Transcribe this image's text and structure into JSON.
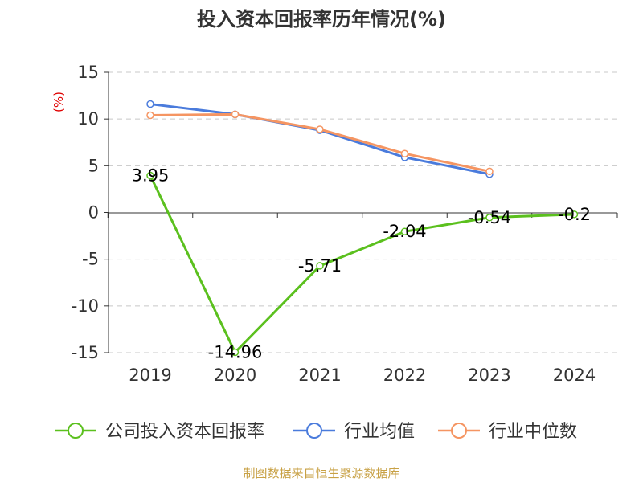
{
  "title": "投入资本回报率历年情况(%)",
  "source": "制图数据来自恒生聚源数据库",
  "chart_data": {
    "type": "line",
    "title": "投入资本回报率历年情况(%)",
    "xlabel": "",
    "ylabel": "(%)",
    "categories": [
      "2019",
      "2020",
      "2021",
      "2022",
      "2023",
      "2024"
    ],
    "ylim": [
      -15,
      15
    ],
    "yticks": [
      15,
      10,
      5,
      0,
      -5,
      -10,
      -15
    ],
    "grid": true,
    "legend_position": "bottom",
    "series": [
      {
        "name": "公司投入资本回报率",
        "color": "#5bc01e",
        "values": [
          3.95,
          -14.96,
          -5.71,
          -2.04,
          -0.54,
          -0.2
        ],
        "labels": [
          "3.95",
          "-14.96",
          "-5.71",
          "-2.04",
          "-0.54",
          "-0.2"
        ]
      },
      {
        "name": "行业均值",
        "color": "#4a7bdc",
        "values": [
          11.6,
          10.5,
          8.8,
          5.9,
          4.1,
          null
        ]
      },
      {
        "name": "行业中位数",
        "color": "#f59562",
        "values": [
          10.4,
          10.5,
          8.9,
          6.3,
          4.4,
          null
        ]
      }
    ]
  }
}
